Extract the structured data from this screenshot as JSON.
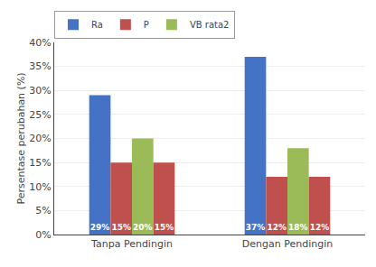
{
  "chart_data": {
    "type": "bar",
    "categories": [
      "Tanpa Pendingin",
      "Dengan Pendingin"
    ],
    "series": [
      {
        "name": "Ra",
        "color": "#4472C4",
        "values": [
          29,
          37
        ],
        "value_labels": [
          "29%",
          "37%"
        ]
      },
      {
        "name": "P",
        "color": "#C0504D",
        "values": [
          15,
          12
        ],
        "value_labels": [
          "15%",
          "12%"
        ]
      },
      {
        "name": "VB rata2",
        "color": "#9BBB59",
        "values": [
          20,
          18
        ],
        "value_labels": [
          "20%",
          "18%"
        ]
      },
      {
        "color": "#C0504D",
        "values": [
          15,
          12
        ],
        "value_labels": [
          "15%",
          "12%"
        ]
      }
    ],
    "ylabel": "Persentase perubahan (%)",
    "ylim": [
      0,
      40
    ],
    "yticks": [
      {
        "value": 0,
        "label": "0%"
      },
      {
        "value": 5,
        "label": "5%"
      },
      {
        "value": 10,
        "label": "10%"
      },
      {
        "value": 15,
        "label": "15%"
      },
      {
        "value": 20,
        "label": "20%"
      },
      {
        "value": 25,
        "label": "25%"
      },
      {
        "value": 30,
        "label": "30%"
      },
      {
        "value": 35,
        "label": "35%"
      },
      {
        "value": 40,
        "label": "40%"
      }
    ],
    "grid": true,
    "legend": "upper left",
    "data_labels": true
  }
}
